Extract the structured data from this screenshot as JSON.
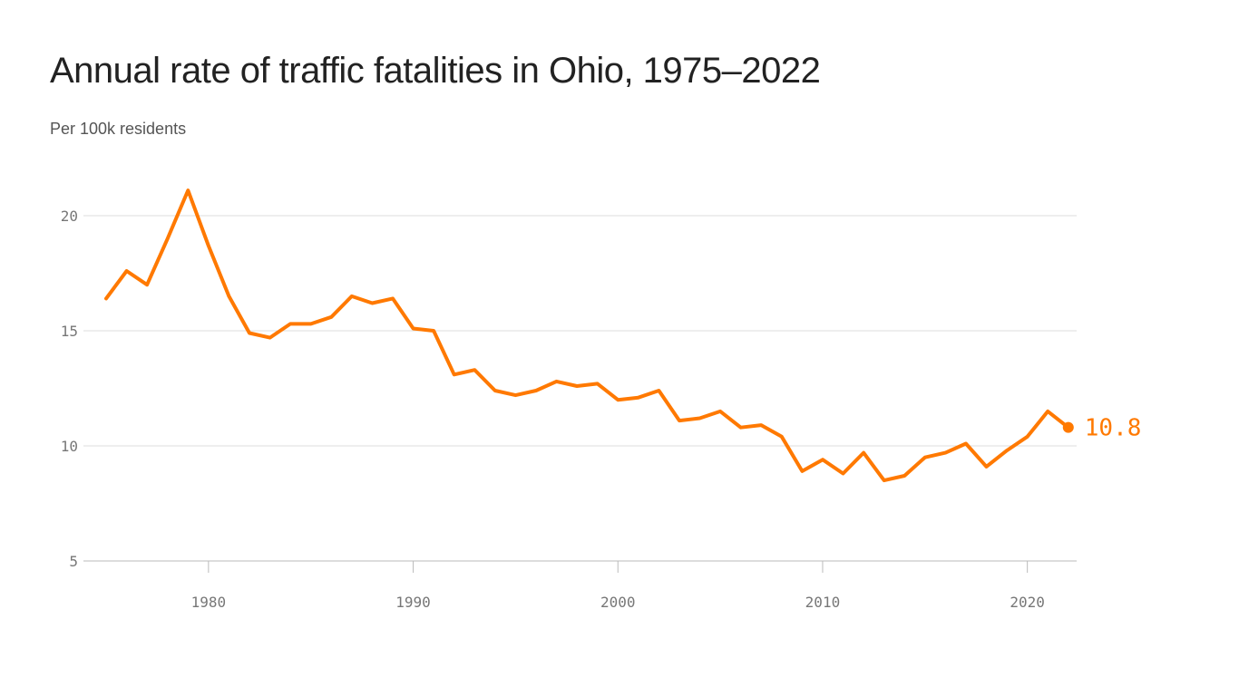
{
  "chart_data": {
    "type": "line",
    "title": "Annual rate of traffic fatalities in Ohio, 1975–2022",
    "subtitle": "Per 100k residents",
    "xlabel": "",
    "ylabel": "",
    "xlim": [
      1975,
      2022
    ],
    "ylim": [
      5,
      21.5
    ],
    "yticks": [
      5,
      10,
      15,
      20
    ],
    "xticks": [
      1980,
      1990,
      2000,
      2010,
      2020
    ],
    "grid": "horizontal",
    "line_color": "#ff7900",
    "end_label": "10.8",
    "x": [
      1975,
      1976,
      1977,
      1978,
      1979,
      1980,
      1981,
      1982,
      1983,
      1984,
      1985,
      1986,
      1987,
      1988,
      1989,
      1990,
      1991,
      1992,
      1993,
      1994,
      1995,
      1996,
      1997,
      1998,
      1999,
      2000,
      2001,
      2002,
      2003,
      2004,
      2005,
      2006,
      2007,
      2008,
      2009,
      2010,
      2011,
      2012,
      2013,
      2014,
      2015,
      2016,
      2017,
      2018,
      2019,
      2020,
      2021,
      2022
    ],
    "values": [
      16.4,
      17.6,
      17.0,
      19.0,
      21.1,
      18.7,
      16.5,
      14.9,
      14.7,
      15.3,
      15.3,
      15.6,
      16.5,
      16.2,
      16.4,
      15.1,
      15.0,
      13.1,
      13.3,
      12.4,
      12.2,
      12.4,
      12.8,
      12.6,
      12.7,
      12.0,
      12.1,
      12.4,
      11.1,
      11.2,
      11.5,
      10.8,
      10.9,
      10.4,
      8.9,
      9.4,
      8.8,
      9.7,
      8.5,
      8.7,
      9.5,
      9.7,
      10.1,
      9.1,
      9.8,
      10.4,
      11.5,
      10.8
    ]
  }
}
